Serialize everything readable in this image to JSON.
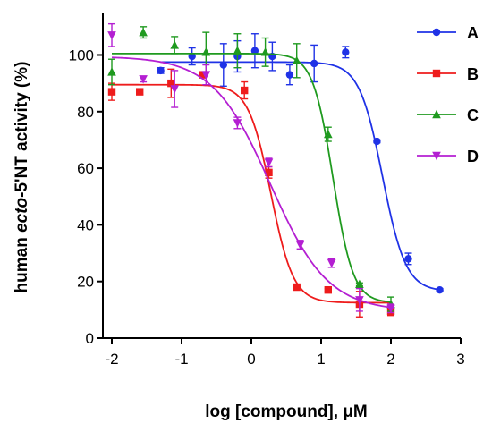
{
  "chart_data": {
    "type": "scatter",
    "ylabel_parts": [
      "human ",
      "ecto",
      "-5'NT activity (%)"
    ],
    "xlabel": "log [compound], μM",
    "xlim": [
      -2,
      3
    ],
    "ylim": [
      0,
      115
    ],
    "x_ticks": [
      -2,
      -1,
      0,
      1,
      2,
      3
    ],
    "y_ticks": [
      0,
      20,
      40,
      60,
      80,
      100
    ],
    "grid": false,
    "legend_position": "top-right",
    "series": [
      {
        "name": "A",
        "color": "#1f32e6",
        "marker": "circle",
        "fit": {
          "top": 97.5,
          "bottom": 16.5,
          "log_ic50": 1.88,
          "hill": -2.6
        },
        "points": [
          {
            "x": -1.3,
            "y": 94.5,
            "err": 1.0
          },
          {
            "x": -0.85,
            "y": 99.5,
            "err": 3.0
          },
          {
            "x": -0.4,
            "y": 96.5,
            "err": 7.5
          },
          {
            "x": -0.2,
            "y": 99.5,
            "err": 5.5
          },
          {
            "x": 0.05,
            "y": 101.5,
            "err": 6.0
          },
          {
            "x": 0.3,
            "y": 99.5,
            "err": 5.0
          },
          {
            "x": 0.55,
            "y": 93.0,
            "err": 3.5
          },
          {
            "x": 0.9,
            "y": 97.0,
            "err": 6.5
          },
          {
            "x": 1.35,
            "y": 101.0,
            "err": 2.0
          },
          {
            "x": 1.8,
            "y": 69.5,
            "err": 0.5
          },
          {
            "x": 2.25,
            "y": 28.0,
            "err": 2.0
          },
          {
            "x": 2.7,
            "y": 17.0,
            "err": 0.5
          }
        ]
      },
      {
        "name": "B",
        "color": "#ee1c1c",
        "marker": "square",
        "fit": {
          "top": 89.5,
          "bottom": 12.5,
          "log_ic50": 0.28,
          "hill": -2.7
        },
        "points": [
          {
            "x": -2.0,
            "y": 87.0,
            "err": 3.0
          },
          {
            "x": -1.6,
            "y": 87.0,
            "err": 1.0
          },
          {
            "x": -1.15,
            "y": 90.0,
            "err": 5.0
          },
          {
            "x": -0.7,
            "y": 93.0,
            "err": 1.0
          },
          {
            "x": -0.1,
            "y": 87.5,
            "err": 3.0
          },
          {
            "x": 0.25,
            "y": 58.5,
            "err": 2.0
          },
          {
            "x": 0.65,
            "y": 18.0,
            "err": 0.5
          },
          {
            "x": 1.1,
            "y": 17.0,
            "err": 0.5
          },
          {
            "x": 1.55,
            "y": 12.0,
            "err": 4.5
          },
          {
            "x": 2.0,
            "y": 9.5,
            "err": 1.5
          }
        ]
      },
      {
        "name": "C",
        "color": "#1f9a1f",
        "marker": "triangle-up",
        "fit": {
          "top": 100.5,
          "bottom": 12.5,
          "log_ic50": 1.17,
          "hill": -3.0
        },
        "points": [
          {
            "x": -2.0,
            "y": 94.0,
            "err": 4.5
          },
          {
            "x": -1.55,
            "y": 108.0,
            "err": 2.0
          },
          {
            "x": -1.1,
            "y": 103.5,
            "err": 3.0
          },
          {
            "x": -0.65,
            "y": 101.0,
            "err": 7.0
          },
          {
            "x": -0.2,
            "y": 101.5,
            "err": 6.0
          },
          {
            "x": 0.2,
            "y": 101.0,
            "err": 5.0
          },
          {
            "x": 0.65,
            "y": 98.0,
            "err": 6.0
          },
          {
            "x": 1.1,
            "y": 72.0,
            "err": 2.5
          },
          {
            "x": 1.55,
            "y": 19.0,
            "err": 0.5
          },
          {
            "x": 2.0,
            "y": 12.0,
            "err": 2.5
          }
        ]
      },
      {
        "name": "D",
        "color": "#b41fd2",
        "marker": "triangle-down",
        "fit": {
          "top": 99.5,
          "bottom": 9.5,
          "log_ic50": 0.27,
          "hill": -1.05
        },
        "points": [
          {
            "x": -2.0,
            "y": 107.0,
            "err": 4.0
          },
          {
            "x": -1.55,
            "y": 91.5,
            "err": 1.0
          },
          {
            "x": -1.1,
            "y": 88.0,
            "err": 6.5
          },
          {
            "x": -0.65,
            "y": 93.0,
            "err": 3.5
          },
          {
            "x": -0.2,
            "y": 76.0,
            "err": 2.0
          },
          {
            "x": 0.25,
            "y": 62.0,
            "err": 1.5
          },
          {
            "x": 0.7,
            "y": 33.0,
            "err": 1.5
          },
          {
            "x": 1.15,
            "y": 26.5,
            "err": 1.5
          },
          {
            "x": 1.55,
            "y": 13.5,
            "err": 4.0
          },
          {
            "x": 2.0,
            "y": 10.5,
            "err": 1.5
          }
        ]
      }
    ]
  }
}
